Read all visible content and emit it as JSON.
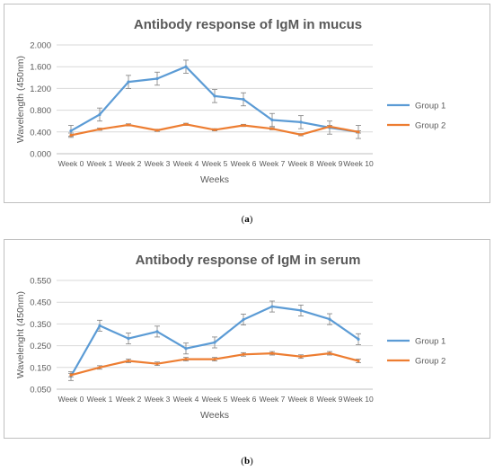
{
  "chart_data": [
    {
      "type": "line",
      "title": "Antibody response of IgM in mucus",
      "xlabel": "Weeks",
      "ylabel": "Wavelength (450nm)",
      "ylim": [
        0,
        2.0
      ],
      "yticks": [
        "0.000",
        "0.400",
        "0.800",
        "1.200",
        "1.600",
        "2.000"
      ],
      "ytick_values": [
        0,
        0.4,
        0.8,
        1.2,
        1.6,
        2.0
      ],
      "categories": [
        "Week 0",
        "Week 1",
        "Week 2",
        "Week 3",
        "Week 4",
        "Week 5",
        "Week 6",
        "Week 7",
        "Week 8",
        "Week 9",
        "Week 10"
      ],
      "grid": true,
      "legend_position": "right",
      "caption": "a",
      "series": [
        {
          "name": "Group 1",
          "color": "#5b9bd5",
          "values": [
            0.42,
            0.72,
            1.32,
            1.38,
            1.6,
            1.06,
            1.0,
            0.62,
            0.58,
            0.48,
            0.4
          ],
          "errors": [
            0.1,
            0.12,
            0.12,
            0.12,
            0.12,
            0.12,
            0.12,
            0.12,
            0.12,
            0.12,
            0.12
          ]
        },
        {
          "name": "Group 2",
          "color": "#ed7d31",
          "values": [
            0.34,
            0.45,
            0.53,
            0.43,
            0.54,
            0.44,
            0.52,
            0.46,
            0.35,
            0.5,
            0.4
          ],
          "errors": [
            0.04,
            0.02,
            0.02,
            0.02,
            0.02,
            0.02,
            0.02,
            0.02,
            0.02,
            0.02,
            0.02
          ]
        }
      ]
    },
    {
      "type": "line",
      "title": "Antibody response of IgM in serum",
      "xlabel": "Weeks",
      "ylabel": "Wavelenght (450nm)",
      "ylim": [
        0.05,
        0.55
      ],
      "yticks": [
        "0.050",
        "0.150",
        "0.250",
        "0.350",
        "0.450",
        "0.550"
      ],
      "ytick_values": [
        0.05,
        0.15,
        0.25,
        0.35,
        0.45,
        0.55
      ],
      "categories": [
        "Week 0",
        "Week 1",
        "Week 2",
        "Week 3",
        "Week 4",
        "Week 5",
        "Week 6",
        "Week 7",
        "Week 8",
        "Week 9",
        "Week 10"
      ],
      "grid": true,
      "legend_position": "right",
      "caption": "b",
      "series": [
        {
          "name": "Group 1",
          "color": "#5b9bd5",
          "values": [
            0.11,
            0.342,
            0.283,
            0.315,
            0.237,
            0.265,
            0.37,
            0.43,
            0.412,
            0.372,
            0.28
          ],
          "errors": [
            0.02,
            0.025,
            0.025,
            0.025,
            0.025,
            0.025,
            0.025,
            0.025,
            0.025,
            0.025,
            0.025
          ]
        },
        {
          "name": "Group 2",
          "color": "#ed7d31",
          "values": [
            0.115,
            0.15,
            0.18,
            0.167,
            0.188,
            0.188,
            0.21,
            0.215,
            0.2,
            0.215,
            0.18
          ],
          "errors": [
            0.008,
            0.008,
            0.008,
            0.008,
            0.008,
            0.008,
            0.008,
            0.008,
            0.008,
            0.008,
            0.008
          ]
        }
      ]
    }
  ]
}
